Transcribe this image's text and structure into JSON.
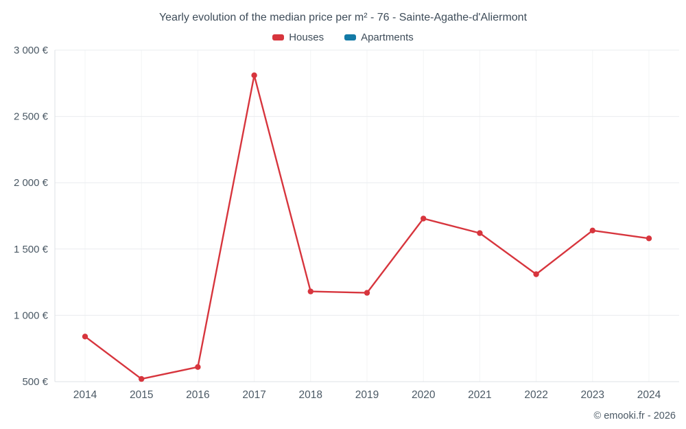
{
  "chart_data": {
    "type": "line",
    "title": "Yearly evolution of the median price per m² - 76 - Sainte-Agathe-d'Aliermont",
    "categories": [
      "2014",
      "2015",
      "2016",
      "2017",
      "2018",
      "2019",
      "2020",
      "2021",
      "2022",
      "2023",
      "2024"
    ],
    "series": [
      {
        "name": "Houses",
        "color": "#d7353d",
        "values": [
          840,
          520,
          610,
          2810,
          1180,
          1170,
          1730,
          1620,
          1310,
          1640,
          1580
        ]
      },
      {
        "name": "Apartments",
        "color": "#137aa6",
        "values": []
      }
    ],
    "ylim": [
      500,
      3000
    ],
    "yticks": [
      {
        "value": 500,
        "label": "500 €"
      },
      {
        "value": 1000,
        "label": "1 000 €"
      },
      {
        "value": 1500,
        "label": "1 500 €"
      },
      {
        "value": 2000,
        "label": "2 000 €"
      },
      {
        "value": 2500,
        "label": "2 500 €"
      },
      {
        "value": 3000,
        "label": "3 000 €"
      }
    ],
    "grid": true,
    "legend_position": "top",
    "xlabel": "",
    "ylabel": ""
  },
  "footer": {
    "copyright": "© emooki.fr - 2026"
  }
}
